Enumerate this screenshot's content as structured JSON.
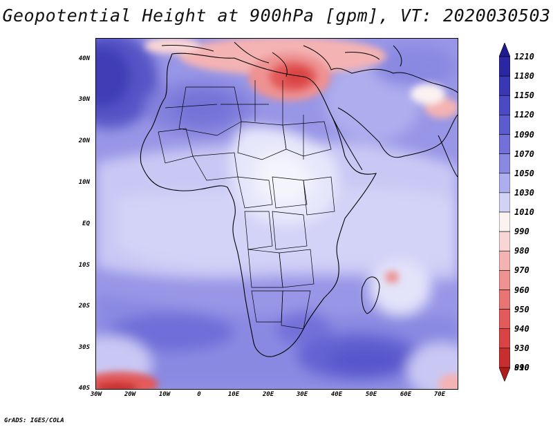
{
  "title": "Geopotential Height at 900hPa [gpm], VT: 2020030503",
  "credit": "GrADS: IGES/COLA",
  "map": {
    "region": "Africa",
    "lon_range": [
      -30,
      75
    ],
    "lat_range": [
      -40,
      45
    ],
    "lat_ticks": [
      {
        "label": "40N",
        "lat": 40
      },
      {
        "label": "30N",
        "lat": 30
      },
      {
        "label": "20N",
        "lat": 20
      },
      {
        "label": "10N",
        "lat": 10
      },
      {
        "label": "EQ",
        "lat": 0
      },
      {
        "label": "10S",
        "lat": -10
      },
      {
        "label": "20S",
        "lat": -20
      },
      {
        "label": "30S",
        "lat": -30
      },
      {
        "label": "40S",
        "lat": -40
      }
    ],
    "lon_ticks": [
      {
        "label": "30W",
        "lon": -30
      },
      {
        "label": "20W",
        "lon": -20
      },
      {
        "label": "10W",
        "lon": -10
      },
      {
        "label": "0",
        "lon": 0
      },
      {
        "label": "10E",
        "lon": 10
      },
      {
        "label": "20E",
        "lon": 20
      },
      {
        "label": "30E",
        "lon": 30
      },
      {
        "label": "40E",
        "lon": 40
      },
      {
        "label": "50E",
        "lon": 50
      },
      {
        "label": "60E",
        "lon": 60
      },
      {
        "label": "70E",
        "lon": 70
      }
    ]
  },
  "colorbar": {
    "levels": [
      {
        "label": "1210",
        "color": "#1f1a8f"
      },
      {
        "label": "1180",
        "color": "#2b27a3"
      },
      {
        "label": "1150",
        "color": "#3a37b5"
      },
      {
        "label": "1120",
        "color": "#4b49c3"
      },
      {
        "label": "1090",
        "color": "#5d5cce"
      },
      {
        "label": "1070",
        "color": "#7371d9"
      },
      {
        "label": "1050",
        "color": "#8a89e2"
      },
      {
        "label": "1030",
        "color": "#aeadee"
      },
      {
        "label": "1010",
        "color": "#d2d2f7"
      },
      {
        "label": "990",
        "color": "#fbf2f2"
      },
      {
        "label": "980",
        "color": "#f9d6d6"
      },
      {
        "label": "970",
        "color": "#f4b3b3"
      },
      {
        "label": "960",
        "color": "#ee9292"
      },
      {
        "label": "950",
        "color": "#e87474"
      },
      {
        "label": "940",
        "color": "#e35a5a"
      },
      {
        "label": "930",
        "color": "#d94343"
      },
      {
        "label": "910",
        "color": "#c72e2e"
      },
      {
        "label": "890",
        "color": "#b01c1c"
      }
    ]
  }
}
